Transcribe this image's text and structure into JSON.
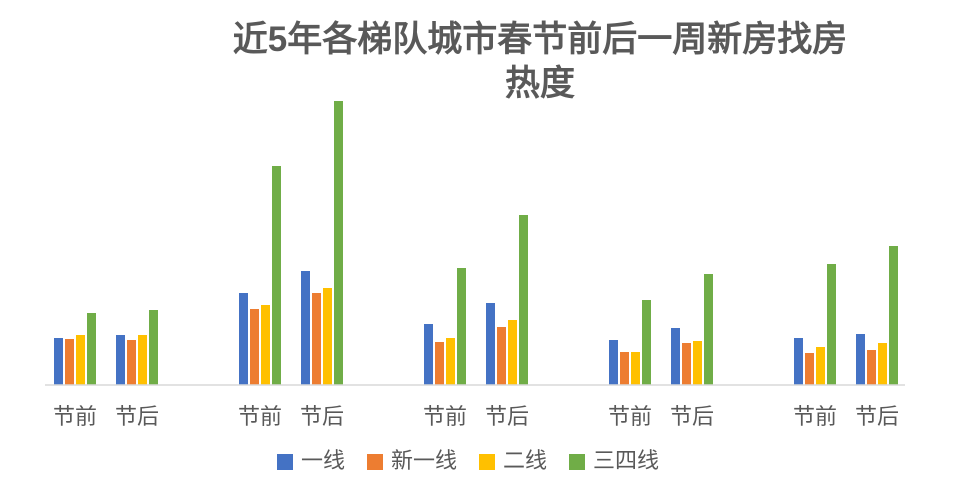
{
  "chart_data": {
    "type": "bar",
    "title": "近5年各梯队城市春节前后一周新房找房热度",
    "categories": [
      "节前",
      "节后",
      "节前",
      "节后",
      "节前",
      "节后",
      "节前",
      "节后",
      "节前",
      "节后"
    ],
    "series": [
      {
        "name": "一线",
        "color": "#4472c4",
        "values": [
          47,
          50,
          92,
          114,
          61,
          82,
          45,
          57,
          47,
          51
        ]
      },
      {
        "name": "新一线",
        "color": "#ed7d31",
        "values": [
          46,
          45,
          76,
          92,
          43,
          58,
          33,
          42,
          32,
          35
        ]
      },
      {
        "name": "二线",
        "color": "#ffc000",
        "values": [
          50,
          50,
          80,
          97,
          47,
          65,
          33,
          44,
          38,
          42
        ]
      },
      {
        "name": "三四线",
        "color": "#70ad47",
        "values": [
          72,
          75,
          219,
          284,
          117,
          170,
          85,
          111,
          121,
          139
        ]
      }
    ],
    "ylim": [
      0,
      290
    ],
    "legend": "bottom"
  }
}
